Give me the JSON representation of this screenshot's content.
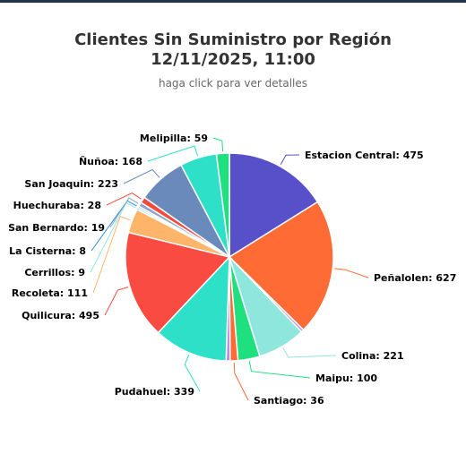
{
  "title_line1": "Clientes Sin Suministro por Región",
  "title_line2": "12/11/2025, 11:00",
  "subtitle": "haga click para ver detalles",
  "chart_data": {
    "type": "pie",
    "title": "Clientes Sin Suministro por Región 12/11/2025, 11:00",
    "subtitle": "haga click para ver detalles",
    "slices": [
      {
        "name": "Estacion Central",
        "value": 475,
        "color": "#5850c8"
      },
      {
        "name": "Peñalolen",
        "value": 627,
        "color": "#ff6b35"
      },
      {
        "name": "",
        "value": 12,
        "color": "#b388e8"
      },
      {
        "name": "Colina",
        "value": 221,
        "color": "#8fe6dc"
      },
      {
        "name": "Maipu",
        "value": 100,
        "color": "#1fe07f"
      },
      {
        "name": "Santiago",
        "value": 36,
        "color": "#ff6b35"
      },
      {
        "name": "",
        "value": 18,
        "color": "#b388e8"
      },
      {
        "name": "Pudahuel",
        "value": 339,
        "color": "#2fe0c8"
      },
      {
        "name": "Quilicura",
        "value": 495,
        "color": "#fa4b42"
      },
      {
        "name": "Recoleta",
        "value": 111,
        "color": "#feb56a"
      },
      {
        "name": "Cerrillos",
        "value": 9,
        "color": "#91e8e1"
      },
      {
        "name": "La Cisterna",
        "value": 8,
        "color": "#2b90d9"
      },
      {
        "name": "San Bernardo",
        "value": 19,
        "color": "#8fa6c8"
      },
      {
        "name": "Huechuraba",
        "value": 28,
        "color": "#f04b3c"
      },
      {
        "name": "San Joaquin",
        "value": 223,
        "color": "#6b8abc"
      },
      {
        "name": "Ñuñoa",
        "value": 168,
        "color": "#2fe0c8"
      },
      {
        "name": "Melipilla",
        "value": 59,
        "color": "#1fe07f"
      }
    ]
  }
}
